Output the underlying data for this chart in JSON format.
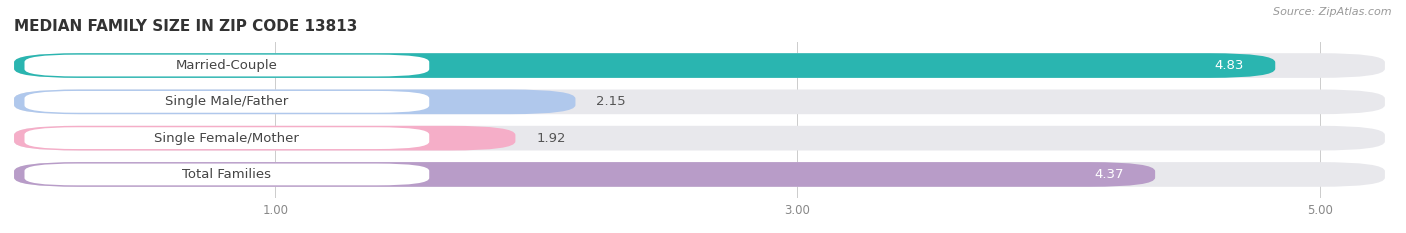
{
  "title": "MEDIAN FAMILY SIZE IN ZIP CODE 13813",
  "source": "Source: ZipAtlas.com",
  "categories": [
    "Married-Couple",
    "Single Male/Father",
    "Single Female/Mother",
    "Total Families"
  ],
  "values": [
    4.83,
    2.15,
    1.92,
    4.37
  ],
  "bar_colors": [
    "#2ab5b0",
    "#b0c8ec",
    "#f5aec8",
    "#b89cc8"
  ],
  "background_color": "#ffffff",
  "bar_bg_color": "#e8e8ec",
  "xmin": 0.0,
  "xmax": 5.25,
  "xticks": [
    1.0,
    3.0,
    5.0
  ],
  "xtick_labels": [
    "1.00",
    "3.00",
    "5.00"
  ],
  "label_fontsize": 9.5,
  "value_fontsize": 9.5,
  "title_fontsize": 11
}
